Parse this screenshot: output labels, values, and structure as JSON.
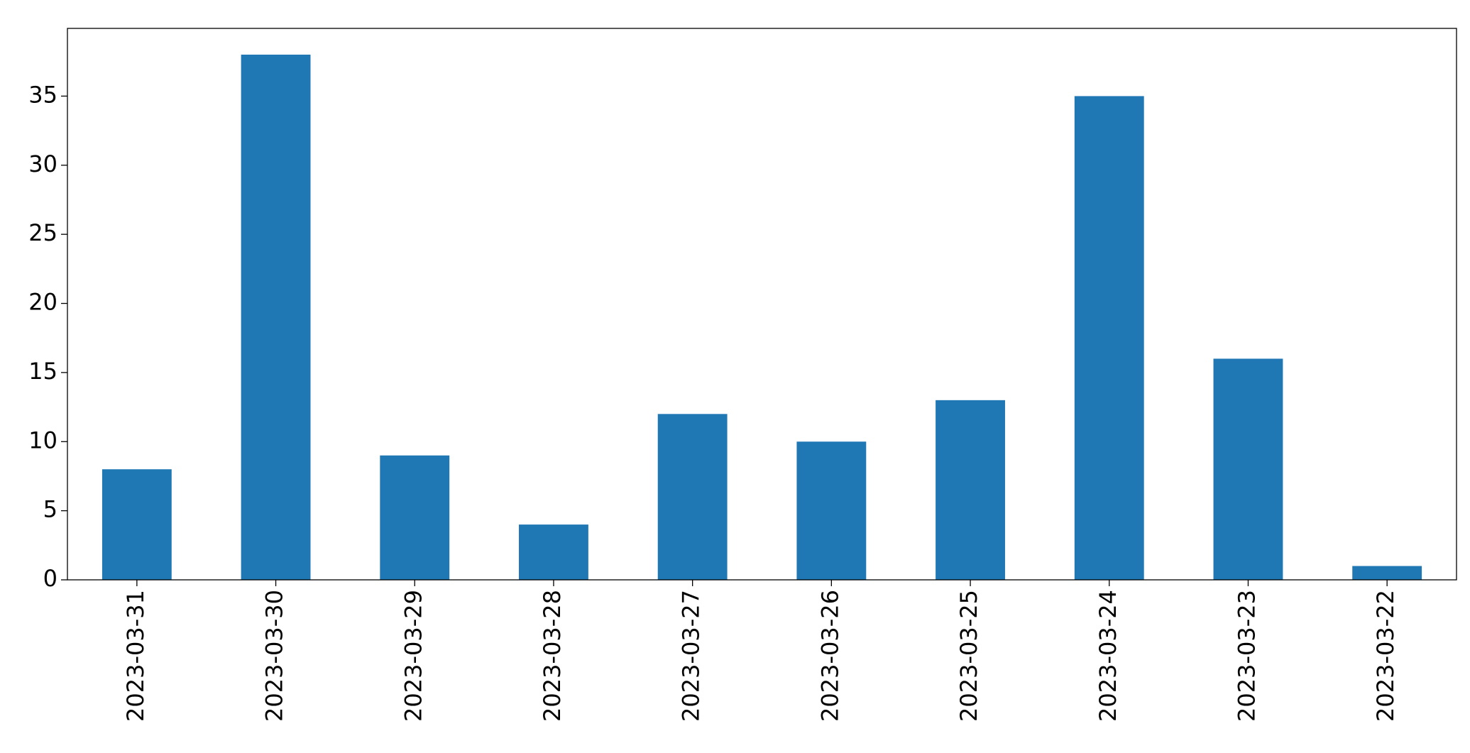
{
  "chart_data": {
    "type": "bar",
    "categories": [
      "2023-03-31",
      "2023-03-30",
      "2023-03-29",
      "2023-03-28",
      "2023-03-27",
      "2023-03-26",
      "2023-03-25",
      "2023-03-24",
      "2023-03-23",
      "2023-03-22"
    ],
    "values": [
      8,
      38,
      9,
      4,
      12,
      10,
      13,
      35,
      16,
      1
    ],
    "color": "#1f77b4",
    "ylim": [
      0,
      39.9
    ],
    "yticks": [
      0,
      5,
      10,
      15,
      20,
      25,
      30,
      35
    ],
    "grid": false
  }
}
